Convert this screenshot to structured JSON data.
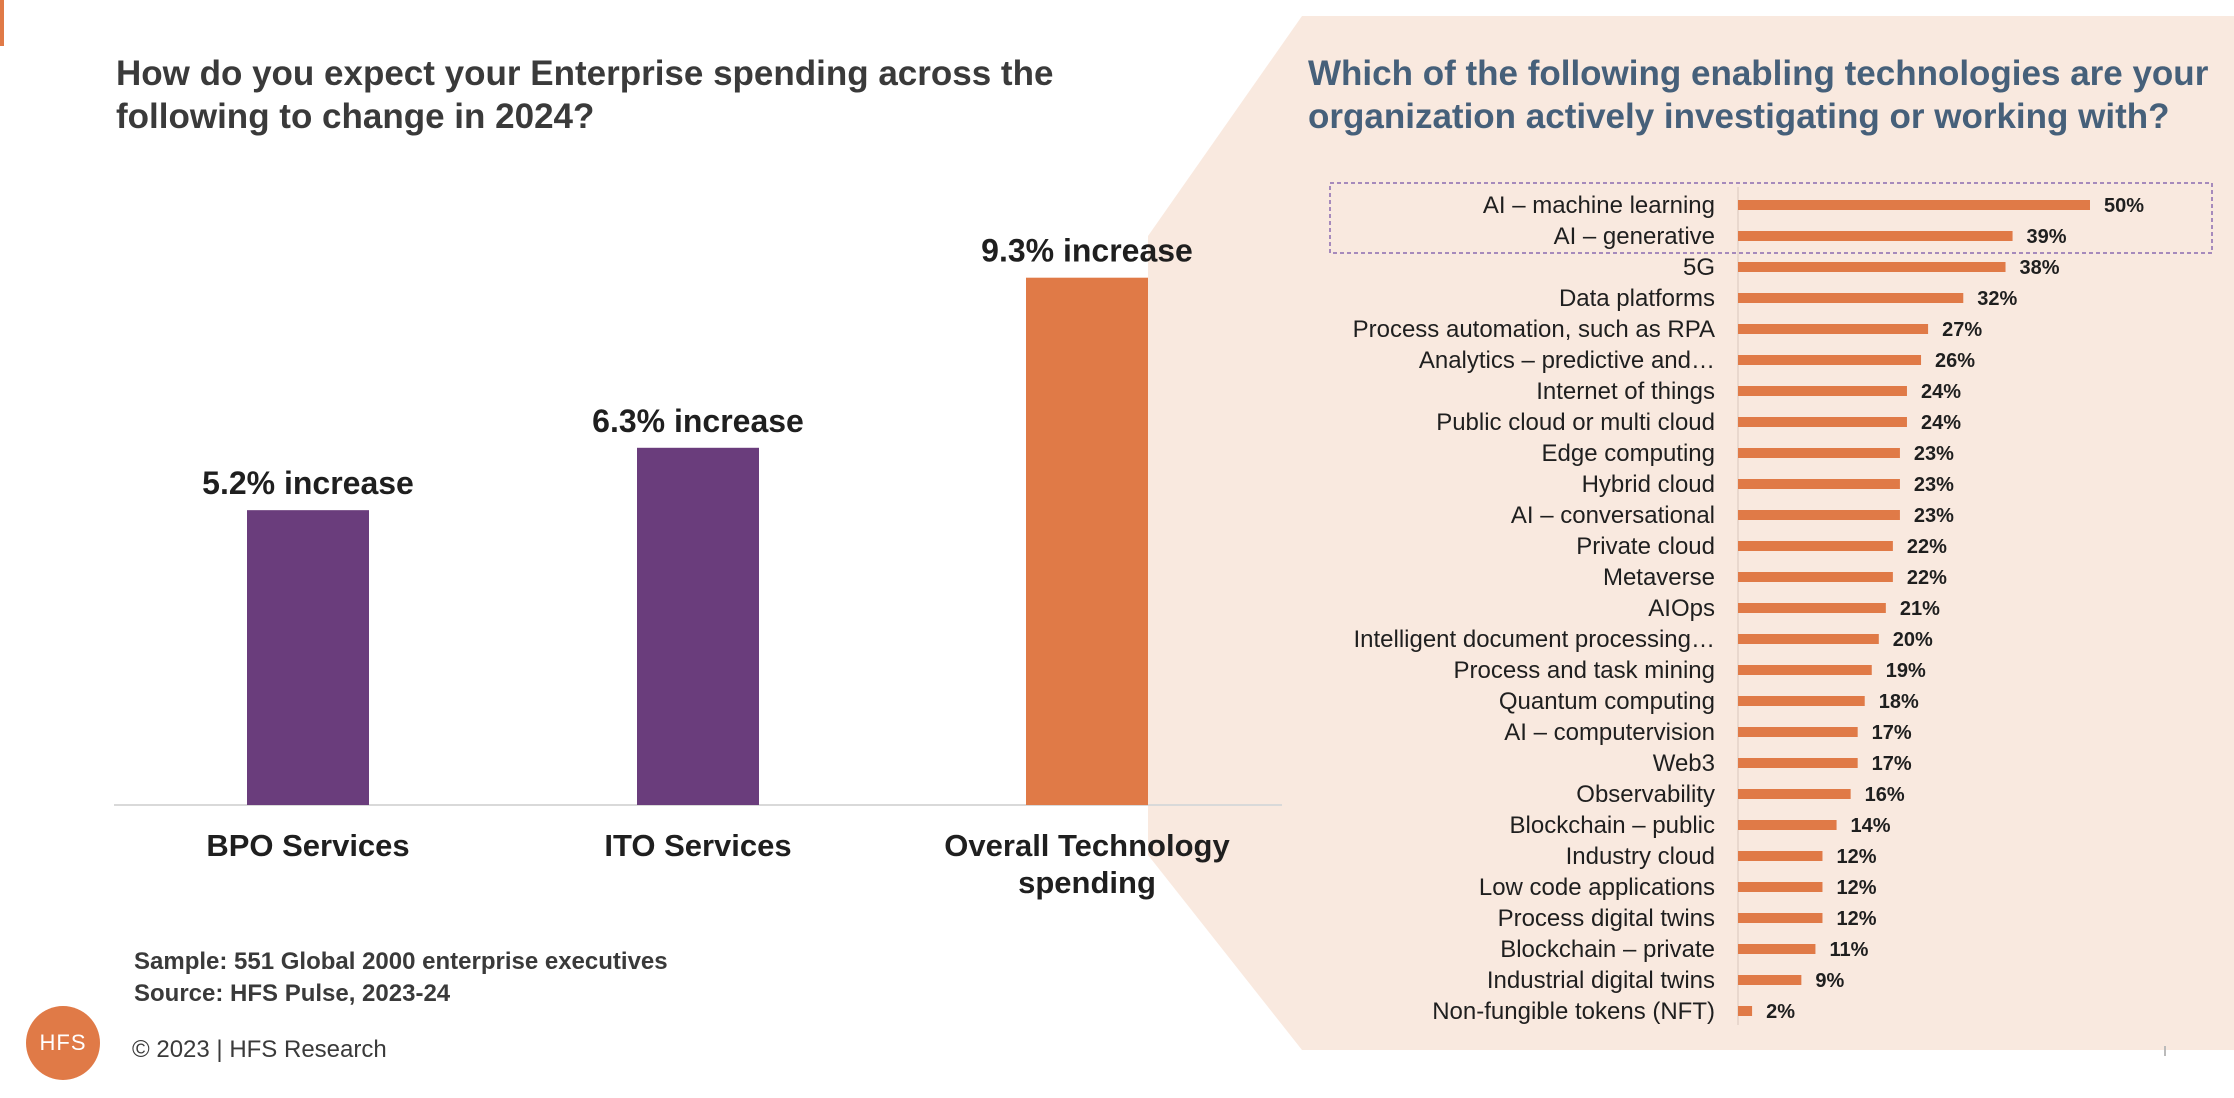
{
  "left_title": "How do you expect your Enterprise spending across the following to change in 2024?",
  "right_title": "Which of the following enabling technologies are your organization actively investigating or working with?",
  "notes": {
    "sample": "Sample: 551 Global 2000 enterprise executives",
    "source": "Source: HFS Pulse, 2023-24"
  },
  "footer": {
    "logo_text": "HFS",
    "copyright": "© 2023 | HFS Research"
  },
  "colors": {
    "purple": "#6a3d7c",
    "orange": "#e07a47",
    "panel_bg": "#f9e9df",
    "title_blue": "#46607a",
    "highlight_box": "#8a6bb0"
  },
  "chart_data": [
    {
      "type": "bar",
      "categories": [
        "BPO Services",
        "ITO Services",
        "Overall Technology spending"
      ],
      "values": [
        5.2,
        6.3,
        9.3
      ],
      "data_labels": [
        "5.2% increase",
        "6.3% increase",
        "9.3% increase"
      ],
      "bar_colors": [
        "#6a3d7c",
        "#6a3d7c",
        "#e07a47"
      ],
      "ylim": [
        0,
        10
      ],
      "grid": false,
      "legend": "none"
    },
    {
      "type": "bar",
      "orientation": "horizontal",
      "categories": [
        "AI – machine learning",
        "AI – generative",
        "5G",
        "Data platforms",
        "Process automation, such as RPA",
        "Analytics – predictive and…",
        "Internet of things",
        "Public cloud or multi cloud",
        "Edge computing",
        "Hybrid cloud",
        "AI – conversational",
        "Private cloud",
        "Metaverse",
        "AIOps",
        "Intelligent document processing…",
        "Process and task mining",
        "Quantum computing",
        "AI – computervision",
        "Web3",
        "Observability",
        "Blockchain – public",
        "Industry cloud",
        "Low code applications",
        "Process digital twins",
        "Blockchain – private",
        "Industrial digital twins",
        "Non-fungible tokens (NFT)"
      ],
      "values": [
        50,
        39,
        38,
        32,
        27,
        26,
        24,
        24,
        23,
        23,
        23,
        22,
        22,
        21,
        20,
        19,
        18,
        17,
        17,
        16,
        14,
        12,
        12,
        12,
        11,
        9,
        2
      ],
      "data_labels": [
        "50%",
        "39%",
        "38%",
        "32%",
        "27%",
        "26%",
        "24%",
        "24%",
        "23%",
        "23%",
        "23%",
        "22%",
        "22%",
        "21%",
        "20%",
        "19%",
        "18%",
        "17%",
        "17%",
        "16%",
        "14%",
        "12%",
        "12%",
        "12%",
        "11%",
        "9%",
        "2%"
      ],
      "highlighted": [
        "AI – machine learning",
        "AI – generative"
      ],
      "bar_color": "#e07a47",
      "xlim": [
        0,
        50
      ],
      "grid": false,
      "legend": "none"
    }
  ]
}
